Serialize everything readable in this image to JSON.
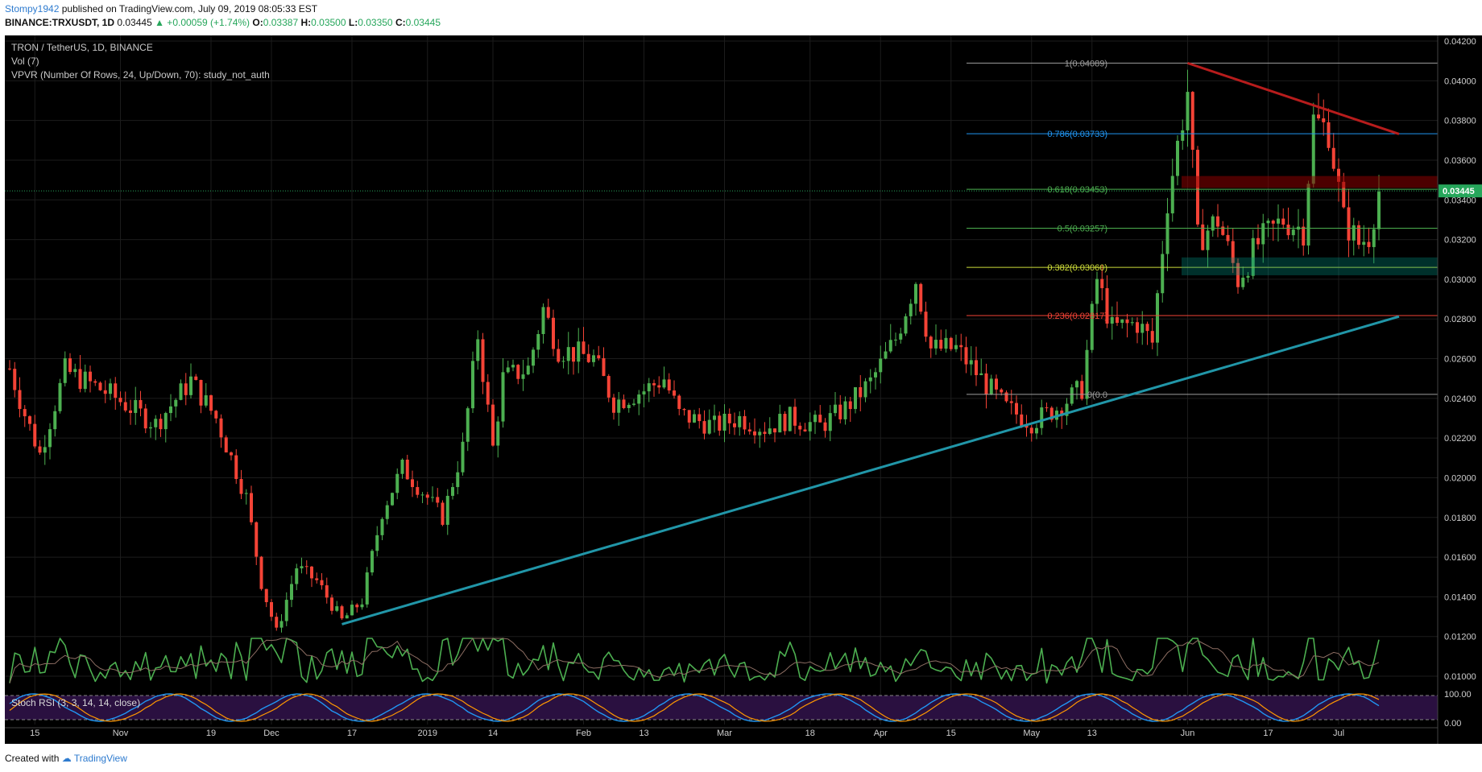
{
  "header": {
    "user": "Stompy1942",
    "published": "published on TradingView.com, July 09, 2019 08:05:33 EST",
    "symbol": "BINANCE:TRXUSDT, 1D",
    "last": "0.03445",
    "change": "▲ +0.00059 (+1.74%)",
    "o_label": "O:",
    "o": "0.03387",
    "h_label": "H:",
    "h": "0.03500",
    "l_label": "L:",
    "l": "0.03350",
    "c_label": "C:",
    "c": "0.03445"
  },
  "legend": {
    "line1": "TRON / TetherUS, 1D, BINANCE",
    "line2": "Vol (7)",
    "line3": "VPVR (Number Of Rows, 24, Up/Down, 70): study_not_auth"
  },
  "stoch_label": "Stoch RSI (3, 3, 14, 14, close)",
  "footer": {
    "created": "Created with",
    "brand": "TradingView"
  },
  "colors": {
    "background": "#000000",
    "up": "#4caf50",
    "down": "#f44336",
    "trendline_support": "#2196a8",
    "trendline_resistance": "#b71c1c",
    "grid": "#1c1c1c",
    "stoch_band": "#2a1040",
    "price_tag": "#26a65b"
  },
  "chart_data": {
    "type": "candlestick",
    "symbol": "TRXUSDT",
    "interval": "1D",
    "y_ticks": [
      "0.04200",
      "0.04000",
      "0.03800",
      "0.03600",
      "0.03400",
      "0.03200",
      "0.03000",
      "0.02800",
      "0.02600",
      "0.02400",
      "0.02200",
      "0.02000",
      "0.01800",
      "0.01600",
      "0.01400",
      "0.01200",
      "0.01000"
    ],
    "ylim": [
      0.0095,
      0.0425
    ],
    "x_ticks": [
      "15",
      "Nov",
      "19",
      "Dec",
      "17",
      "2019",
      "14",
      "Feb",
      "13",
      "Mar",
      "18",
      "Apr",
      "15",
      "May",
      "13",
      "Jun",
      "17",
      "Jul"
    ],
    "last_price_tag": "0.03445",
    "fib_levels": [
      {
        "label": "1(0.04089)",
        "value": 0.04089
      },
      {
        "label": "0.786(0.03733)",
        "value": 0.03733
      },
      {
        "label": "0.618(0.03453)",
        "value": 0.03453
      },
      {
        "label": "0.5(0.03257)",
        "value": 0.03257
      },
      {
        "label": "0.382(0.03060)",
        "value": 0.0306
      },
      {
        "label": "0.236(0.02817)",
        "value": 0.02817
      },
      {
        "label": "0(0.0",
        "value": 0.0242
      }
    ],
    "trendlines": [
      {
        "name": "support",
        "from": {
          "date": "Dec 15",
          "price": 0.01262
        },
        "to": {
          "date": "Jul 13",
          "price": 0.02812
        }
      },
      {
        "name": "resistance",
        "from": {
          "date": "Jun 01",
          "price": 0.04089
        },
        "to": {
          "date": "Jul 13",
          "price": 0.03732
        }
      }
    ],
    "price_anchors": [
      [
        "Oct 10",
        0.0255
      ],
      [
        "Oct 13",
        0.0232
      ],
      [
        "Oct 16",
        0.0212
      ],
      [
        "Oct 21",
        0.0254
      ],
      [
        "Oct 30",
        0.0242
      ],
      [
        "Nov 08",
        0.0227
      ],
      [
        "Nov 15",
        0.0249
      ],
      [
        "Nov 20",
        0.023
      ],
      [
        "Nov 23",
        0.021
      ],
      [
        "Nov 26",
        0.019
      ],
      [
        "Nov 29",
        0.0147
      ],
      [
        "Dec 02",
        0.0122
      ],
      [
        "Dec 06",
        0.0155
      ],
      [
        "Dec 10",
        0.0148
      ],
      [
        "Dec 15",
        0.0128
      ],
      [
        "Dec 19",
        0.0138
      ],
      [
        "Dec 23",
        0.0183
      ],
      [
        "Dec 27",
        0.0205
      ],
      [
        "Jan 01",
        0.019
      ],
      [
        "Jan 04",
        0.018
      ],
      [
        "Jan 08",
        0.0215
      ],
      [
        "Jan 11",
        0.0272
      ],
      [
        "Jan 14",
        0.0215
      ],
      [
        "Jan 16",
        0.025
      ],
      [
        "Jan 21",
        0.0255
      ],
      [
        "Jan 24",
        0.0285
      ],
      [
        "Jan 27",
        0.0265
      ],
      [
        "Feb 03",
        0.026
      ],
      [
        "Feb 07",
        0.0238
      ],
      [
        "Feb 13",
        0.0244
      ],
      [
        "Feb 17",
        0.025
      ],
      [
        "Feb 20",
        0.0232
      ],
      [
        "Feb 27",
        0.0226
      ],
      [
        "Mar 04",
        0.023
      ],
      [
        "Mar 09",
        0.0225
      ],
      [
        "Mar 14",
        0.023
      ],
      [
        "Mar 20",
        0.0226
      ],
      [
        "Mar 25",
        0.0235
      ],
      [
        "Mar 30",
        0.0248
      ],
      [
        "Apr 04",
        0.027
      ],
      [
        "Apr 08",
        0.03
      ],
      [
        "Apr 11",
        0.0265
      ],
      [
        "Apr 16",
        0.0265
      ],
      [
        "Apr 21",
        0.025
      ],
      [
        "Apr 26",
        0.0235
      ],
      [
        "May 01",
        0.0228
      ],
      [
        "May 06",
        0.0235
      ],
      [
        "May 11",
        0.0245
      ],
      [
        "May 14",
        0.03
      ],
      [
        "May 17",
        0.0275
      ],
      [
        "May 22",
        0.0278
      ],
      [
        "May 25",
        0.0268
      ],
      [
        "May 28",
        0.034
      ],
      [
        "Jun 01",
        0.0395
      ],
      [
        "Jun 03",
        0.032
      ],
      [
        "Jun 07",
        0.033
      ],
      [
        "Jun 11",
        0.03
      ],
      [
        "Jun 15",
        0.0318
      ],
      [
        "Jun 20",
        0.033
      ],
      [
        "Jun 24",
        0.0325
      ],
      [
        "Jun 26",
        0.038
      ],
      [
        "Jun 29",
        0.0375
      ],
      [
        "Jul 02",
        0.033
      ],
      [
        "Jul 05",
        0.0318
      ],
      [
        "Jul 07",
        0.0322
      ],
      [
        "Jul 09",
        0.03445
      ]
    ]
  }
}
